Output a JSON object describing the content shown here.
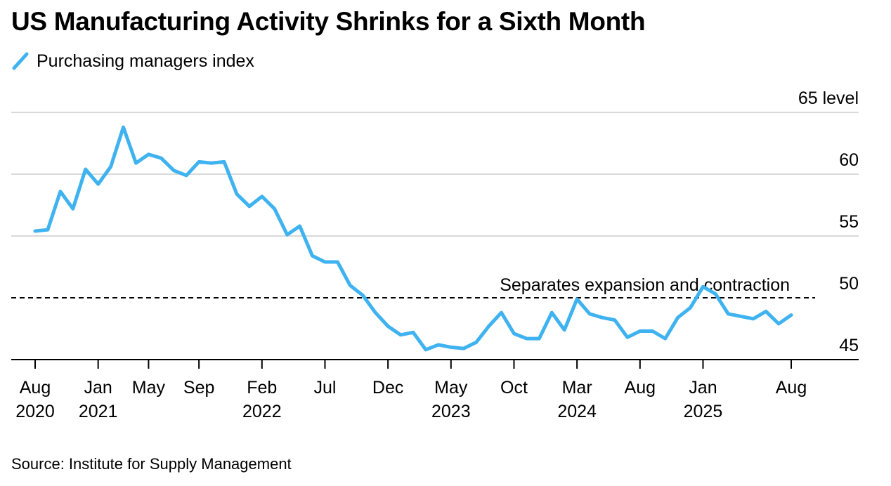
{
  "title": "US Manufacturing Activity Shrinks for a Sixth Month",
  "legend": {
    "label": "Purchasing managers index"
  },
  "source": "Source: Institute for Supply Management",
  "colors": {
    "series": "#3fb2f0",
    "grid": "#d9d9d9",
    "axis": "#000000",
    "reference": "#000000"
  },
  "chart_data": {
    "type": "line",
    "title": "US Manufacturing Activity Shrinks for a Sixth Month",
    "xlabel": "",
    "ylabel": "level",
    "ylim": [
      45,
      65
    ],
    "y_ticks": [
      {
        "value": 65,
        "label": "65 level"
      },
      {
        "value": 60,
        "label": "60"
      },
      {
        "value": 55,
        "label": "55"
      },
      {
        "value": 50,
        "label": "50"
      },
      {
        "value": 45,
        "label": "45"
      }
    ],
    "x_start": "Aug 2020",
    "x_ticks": [
      {
        "index": 0,
        "month": "Aug",
        "year": "2020"
      },
      {
        "index": 5,
        "month": "Jan",
        "year": "2021"
      },
      {
        "index": 9,
        "month": "May",
        "year": ""
      },
      {
        "index": 13,
        "month": "Sep",
        "year": ""
      },
      {
        "index": 18,
        "month": "Feb",
        "year": "2022"
      },
      {
        "index": 23,
        "month": "Jul",
        "year": ""
      },
      {
        "index": 28,
        "month": "Dec",
        "year": ""
      },
      {
        "index": 33,
        "month": "May",
        "year": "2023"
      },
      {
        "index": 38,
        "month": "Oct",
        "year": ""
      },
      {
        "index": 43,
        "month": "Mar",
        "year": "2024"
      },
      {
        "index": 48,
        "month": "Aug",
        "year": ""
      },
      {
        "index": 53,
        "month": "Jan",
        "year": "2025"
      },
      {
        "index": 60,
        "month": "Aug",
        "year": ""
      }
    ],
    "reference_line": {
      "value": 50,
      "label": "Separates expansion and contraction"
    },
    "series": [
      {
        "name": "Purchasing managers index",
        "values": [
          55.4,
          55.5,
          58.6,
          57.2,
          60.4,
          59.2,
          60.6,
          63.8,
          60.9,
          61.6,
          61.3,
          60.3,
          59.9,
          61.0,
          60.9,
          61.0,
          58.4,
          57.4,
          58.2,
          57.2,
          55.1,
          55.8,
          53.4,
          52.9,
          52.9,
          51.0,
          50.2,
          48.8,
          47.7,
          47.0,
          47.2,
          45.8,
          46.2,
          46.0,
          45.9,
          46.4,
          47.7,
          48.8,
          47.1,
          46.7,
          46.7,
          48.8,
          47.4,
          49.9,
          48.7,
          48.4,
          48.2,
          46.8,
          47.3,
          47.3,
          46.7,
          48.4,
          49.2,
          50.9,
          50.3,
          48.7,
          48.5,
          48.3,
          48.9,
          47.9,
          48.6
        ]
      }
    ]
  }
}
